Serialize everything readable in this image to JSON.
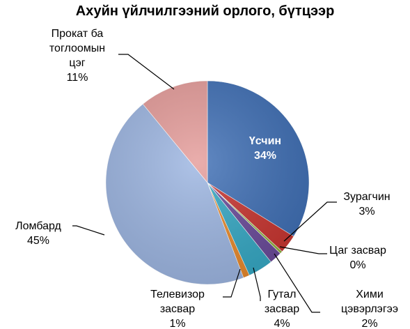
{
  "chart_data": {
    "type": "pie",
    "title": "Ахуйн үйлчилгээний орлого, бүтцээр",
    "slices": [
      {
        "name": "Үсчин",
        "label_lines": [
          "Үсчин",
          "34%"
        ],
        "value": 34,
        "color": "#3f6fb5"
      },
      {
        "name": "Зурагчин",
        "label_lines": [
          "Зурагчин",
          "3%"
        ],
        "value": 3,
        "color": "#c8342f"
      },
      {
        "name": "Цаг засвар",
        "label_lines": [
          "Цаг засвар",
          "0%"
        ],
        "value": 0.4,
        "color": "#8fb53c"
      },
      {
        "name": "Хими цэвэрлэгээ",
        "label_lines": [
          "Хими",
          "цэвэрлэгээ",
          "2%"
        ],
        "value": 2,
        "color": "#6a4a9a"
      },
      {
        "name": "Гутал засвар",
        "label_lines": [
          "Гутал",
          "засвар",
          "4%"
        ],
        "value": 4,
        "color": "#35a8c4"
      },
      {
        "name": "Телевизор засвар",
        "label_lines": [
          "Телевизор",
          "засвар",
          "1%"
        ],
        "value": 1,
        "color": "#e8892b"
      },
      {
        "name": "Ломбард",
        "label_lines": [
          "Ломбард",
          "45%"
        ],
        "value": 45,
        "color": "#9db6e2"
      },
      {
        "name": "Прокат ба тоглоомын цэг",
        "label_lines": [
          "Прокат ба",
          "тоглоомын",
          "цэг",
          "11%"
        ],
        "value": 11,
        "color": "#e59c9a"
      }
    ],
    "start_angle": "12 o'clock",
    "direction": "clockwise",
    "legend": "none"
  }
}
